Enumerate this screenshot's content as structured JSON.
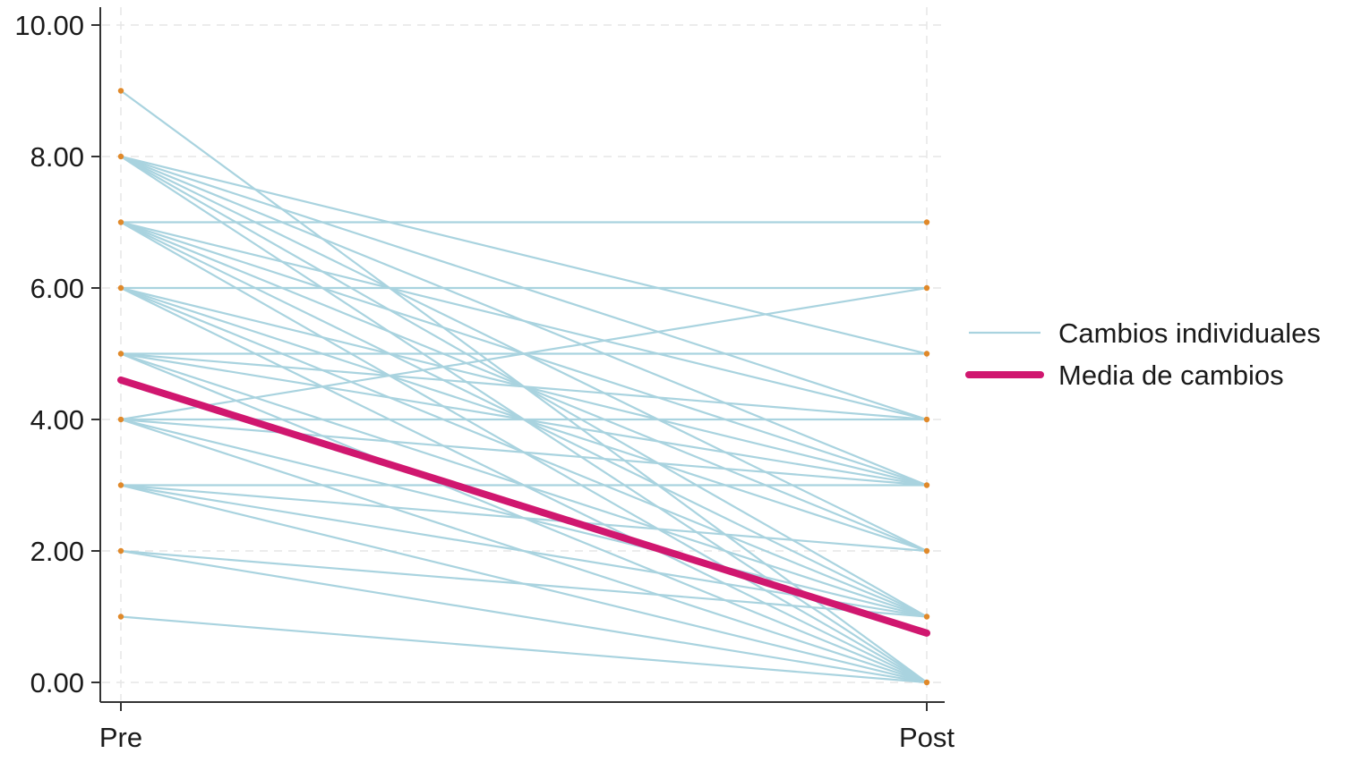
{
  "chart_data": {
    "type": "line",
    "x_categories": [
      "Pre",
      "Post"
    ],
    "y_ticks": [
      "0.00",
      "2.00",
      "4.00",
      "6.00",
      "8.00",
      "10.00"
    ],
    "ylim": [
      0,
      10
    ],
    "grid": true,
    "legend": {
      "placement": "right",
      "entries": [
        {
          "label": "Cambios individuales",
          "color": "#a9d3df"
        },
        {
          "label": "Media de cambios",
          "color": "#d0176f"
        }
      ]
    },
    "individual_changes": [
      [
        9,
        0
      ],
      [
        8,
        5
      ],
      [
        8,
        4
      ],
      [
        8,
        3
      ],
      [
        8,
        2
      ],
      [
        8,
        1
      ],
      [
        8,
        0
      ],
      [
        7,
        7
      ],
      [
        7,
        4
      ],
      [
        7,
        3
      ],
      [
        7,
        2
      ],
      [
        7,
        1
      ],
      [
        7,
        0
      ],
      [
        6,
        6
      ],
      [
        6,
        3
      ],
      [
        6,
        2
      ],
      [
        6,
        1
      ],
      [
        6,
        0
      ],
      [
        5,
        5
      ],
      [
        5,
        4
      ],
      [
        5,
        3
      ],
      [
        5,
        1
      ],
      [
        5,
        0
      ],
      [
        4,
        6
      ],
      [
        4,
        4
      ],
      [
        4,
        3
      ],
      [
        4,
        1
      ],
      [
        4,
        0
      ],
      [
        3,
        3
      ],
      [
        3,
        2
      ],
      [
        3,
        1
      ],
      [
        3,
        0
      ],
      [
        2,
        1
      ],
      [
        2,
        0
      ],
      [
        1,
        0
      ]
    ],
    "mean_change": [
      4.6,
      0.75
    ],
    "colors": {
      "individual": "#a9d3df",
      "mean": "#d0176f",
      "marker": "#e0892a",
      "axis": "#333333",
      "grid": "#e6e6e6"
    }
  }
}
